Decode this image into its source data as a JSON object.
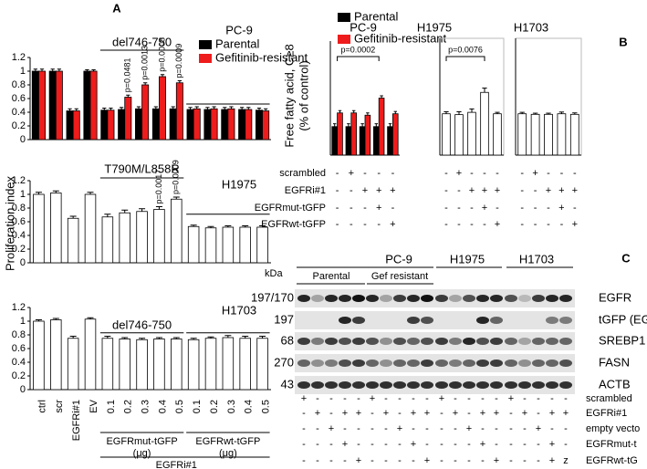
{
  "panel_a": {
    "label": "A",
    "ylabel": "Proliferation index",
    "groups": [
      "EGFRmut-tGFP",
      "(μg)",
      "EGFRwt-tGFP",
      "(μg)"
    ],
    "treatment": "EGFRi#1"
  },
  "panel_b": {
    "label": "B",
    "ylabel": [
      "Free fatty acid, C≥8",
      "(% of control)"
    ],
    "treatments": [
      {
        "name": "scrambled",
        "signs": [
          "-",
          "+",
          "-",
          "-",
          "-",
          "-",
          "+",
          "-",
          "-",
          "-",
          "-",
          "+",
          "-",
          "-",
          "-"
        ]
      },
      {
        "name": "EGFRi#1",
        "signs": [
          "-",
          "-",
          "+",
          "+",
          "+",
          "-",
          "-",
          "+",
          "+",
          "+",
          "-",
          "-",
          "+",
          "+",
          "+"
        ]
      },
      {
        "name": "EGFRmut-tGFP",
        "signs": [
          "-",
          "-",
          "-",
          "+",
          "-",
          "-",
          "-",
          "-",
          "+",
          "-",
          "-",
          "-",
          "-",
          "+",
          "-"
        ]
      },
      {
        "name": "EGFRwt-tGFP",
        "signs": [
          "-",
          "-",
          "-",
          "-",
          "+",
          "-",
          "-",
          "-",
          "-",
          "+",
          "-",
          "-",
          "-",
          "-",
          "+"
        ]
      }
    ]
  },
  "panel_c": {
    "label": "C",
    "cell_lines": [
      "PC-9",
      "H1975",
      "H1703"
    ],
    "subgroups": [
      "Parental",
      "Gef resistant"
    ],
    "kda_header": "kDa",
    "rows": [
      {
        "kda": "197/170",
        "protein": "EGFR"
      },
      {
        "kda": "197",
        "protein": "tGFP (EGFR)"
      },
      {
        "kda": "68",
        "protein": "SREBP1"
      },
      {
        "kda": "270",
        "protein": "FASN"
      },
      {
        "kda": "43",
        "protein": "ACTB"
      }
    ],
    "treatments": [
      {
        "name": "scrambled",
        "signs": [
          "+",
          "-",
          "-",
          "-",
          "-",
          "+",
          "-",
          "-",
          "-",
          "-",
          "+",
          "-",
          "-",
          "-",
          "-",
          "+",
          "-",
          "-",
          "-",
          "-"
        ]
      },
      {
        "name": "EGFRi#1",
        "signs": [
          "-",
          "+",
          "-",
          "+",
          "+",
          "-",
          "+",
          "-",
          "+",
          "+",
          "-",
          "+",
          "-",
          "+",
          "+",
          "-",
          "+",
          "-",
          "+",
          "+"
        ]
      },
      {
        "name": "empty vecto",
        "signs": [
          "-",
          "-",
          "+",
          "-",
          "-",
          "-",
          "-",
          "+",
          "-",
          "-",
          "-",
          "-",
          "+",
          "-",
          "-",
          "-",
          "-",
          "+",
          "-",
          "-"
        ]
      },
      {
        "name": "EGFRmut-t",
        "signs": [
          "-",
          "-",
          "-",
          "+",
          "-",
          "-",
          "-",
          "-",
          "+",
          "-",
          "-",
          "-",
          "-",
          "+",
          "-",
          "-",
          "-",
          "-",
          "+",
          "-"
        ]
      },
      {
        "name": "EGFRwt-tG",
        "signs": [
          "-",
          "-",
          "-",
          "-",
          "+",
          "-",
          "-",
          "-",
          "-",
          "+",
          "-",
          "-",
          "-",
          "-",
          "+",
          "-",
          "-",
          "-",
          "+",
          "z"
        ]
      }
    ]
  },
  "chart_data": [
    {
      "type": "bar",
      "title": "PC-9",
      "ylim": [
        0,
        1.2
      ],
      "yticks": [
        0,
        0.2,
        0.4,
        0.6,
        0.8,
        1,
        1.2
      ],
      "legend": "top-right",
      "annotations": [
        "del746-750",
        "p=0.0481",
        "p=0.0013",
        "p=0.0008",
        "p=0.0009"
      ],
      "series": [
        {
          "name": "Parental",
          "color": "#000000",
          "values": [
            1,
            1,
            0.42,
            1,
            0.43,
            0.44,
            0.45,
            0.45,
            0.45,
            0.44,
            0.44,
            0.44,
            0.44,
            0.43
          ],
          "errors": [
            0.03,
            0.03,
            0.03,
            0.02,
            0.03,
            0.03,
            0.03,
            0.03,
            0.03,
            0.03,
            0.03,
            0.03,
            0.03,
            0.03
          ]
        },
        {
          "name": "Gefitinib-resistant",
          "color": "#ee1c1c",
          "values": [
            1,
            1,
            0.42,
            1,
            0.43,
            0.62,
            0.8,
            0.92,
            0.83,
            0.45,
            0.45,
            0.45,
            0.44,
            0.42
          ],
          "errors": [
            0.03,
            0.03,
            0.03,
            0.02,
            0.03,
            0.03,
            0.03,
            0.03,
            0.03,
            0.03,
            0.03,
            0.03,
            0.03,
            0.03
          ]
        }
      ]
    },
    {
      "type": "bar",
      "title": "H1975",
      "ylim": [
        0,
        1.2
      ],
      "yticks": [
        0,
        0.2,
        0.4,
        0.6,
        0.8,
        1,
        1.2
      ],
      "annotations": [
        "T790M/L858R",
        "p=0.0017",
        "p=0.0009"
      ],
      "series": [
        {
          "color": "#ffffff",
          "values": [
            1,
            1.02,
            0.65,
            1,
            0.67,
            0.73,
            0.75,
            0.78,
            0.93,
            0.53,
            0.51,
            0.52,
            0.52,
            0.52
          ],
          "errors": [
            0.03,
            0.03,
            0.03,
            0.03,
            0.04,
            0.04,
            0.04,
            0.04,
            0.03,
            0.02,
            0.02,
            0.02,
            0.02,
            0.02
          ]
        }
      ]
    },
    {
      "type": "bar",
      "title": "H1703",
      "ylim": [
        0,
        1.2
      ],
      "yticks": [
        0,
        0.2,
        0.4,
        0.6,
        0.8,
        1,
        1.2
      ],
      "annotations": [
        "del746-750"
      ],
      "categories": [
        "ctrl",
        "scr",
        "EGFRi#1",
        "EV",
        "0.1",
        "0.2",
        "0.3",
        "0.4",
        "0.5",
        "0.1",
        "0.2",
        "0.3",
        "0.4",
        "0.5"
      ],
      "series": [
        {
          "color": "#ffffff",
          "values": [
            1,
            1.02,
            0.75,
            1.03,
            0.75,
            0.74,
            0.73,
            0.74,
            0.74,
            0.73,
            0.75,
            0.76,
            0.75,
            0.75
          ],
          "errors": [
            0.02,
            0.02,
            0.03,
            0.02,
            0.03,
            0.02,
            0.02,
            0.02,
            0.02,
            0.02,
            0.02,
            0.03,
            0.03,
            0.03
          ]
        }
      ]
    },
    {
      "type": "bar",
      "title": "PC-9",
      "ylim": [
        0,
        400
      ],
      "legend": "top-left",
      "annotations": [
        "p=0.0002"
      ],
      "series": [
        {
          "name": "Parental",
          "color": "#000000",
          "values": [
            100,
            100,
            100,
            100,
            100
          ],
          "errors": [
            10,
            10,
            10,
            10,
            10
          ]
        },
        {
          "name": "Gefitinib-resistant",
          "color": "#ee1c1c",
          "values": [
            148,
            148,
            140,
            200,
            145
          ],
          "errors": [
            8,
            8,
            8,
            8,
            8
          ]
        }
      ]
    },
    {
      "type": "bar",
      "title": "H1975",
      "ylim": [
        0,
        400
      ],
      "annotations": [
        "p=0.0076"
      ],
      "series": [
        {
          "color": "#ffffff",
          "values": [
            145,
            142,
            150,
            220,
            145
          ],
          "errors": [
            7,
            10,
            12,
            15,
            5
          ]
        }
      ]
    },
    {
      "type": "bar",
      "title": "H1703",
      "ylim": [
        0,
        400
      ],
      "series": [
        {
          "color": "#ffffff",
          "values": [
            145,
            143,
            143,
            145,
            143
          ],
          "errors": [
            5,
            4,
            4,
            6,
            5
          ]
        }
      ]
    }
  ]
}
